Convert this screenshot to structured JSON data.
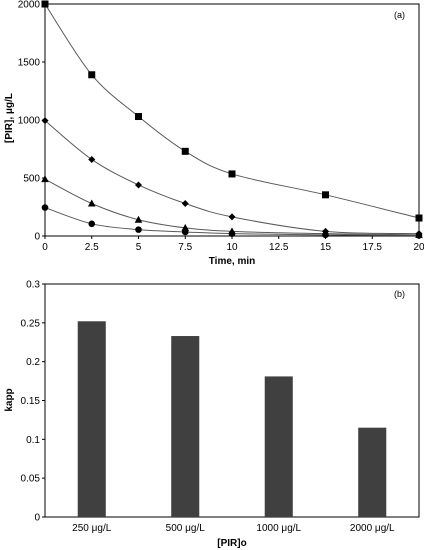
{
  "chart_data": [
    {
      "type": "line",
      "panel_label": "(a)",
      "xlabel": "Time, min",
      "ylabel": "[PIR], μg/L",
      "xlim": [
        0,
        20
      ],
      "ylim": [
        0,
        2000
      ],
      "x_ticks": [
        "0",
        "2.5",
        "5",
        "7.5",
        "10",
        "12.5",
        "15",
        "17.5",
        "20"
      ],
      "y_ticks": [
        "0",
        "500",
        "1000",
        "1500",
        "2000"
      ],
      "grid": false,
      "series": [
        {
          "marker": "square",
          "x": [
            0,
            2.5,
            5,
            7.5,
            10,
            15,
            20
          ],
          "y": [
            2000,
            1390,
            1030,
            730,
            535,
            355,
            155
          ]
        },
        {
          "marker": "diamond",
          "x": [
            0,
            2.5,
            5,
            7.5,
            10,
            15,
            20
          ],
          "y": [
            995,
            660,
            440,
            280,
            165,
            40,
            20
          ]
        },
        {
          "marker": "triangle",
          "x": [
            0,
            2.5,
            5,
            7.5,
            10,
            15,
            20
          ],
          "y": [
            490,
            280,
            140,
            70,
            40,
            20,
            10
          ]
        },
        {
          "marker": "circle",
          "x": [
            0,
            2.5,
            5,
            7.5,
            10,
            15,
            20
          ],
          "y": [
            245,
            105,
            55,
            35,
            20,
            10,
            5
          ]
        }
      ]
    },
    {
      "type": "bar",
      "panel_label": "(b)",
      "xlabel": "[PIR]o",
      "ylabel": "kapp",
      "ylim": [
        0,
        0.3
      ],
      "y_ticks": [
        "0",
        "0.05",
        "0.1",
        "0.15",
        "0.2",
        "0.25",
        "0.3"
      ],
      "categories": [
        "250 μg/L",
        "500 μg/L",
        "1000 μg/L",
        "2000 μg/L"
      ],
      "values": [
        0.252,
        0.233,
        0.181,
        0.115
      ],
      "bar_color": "#404040",
      "grid": false
    }
  ]
}
